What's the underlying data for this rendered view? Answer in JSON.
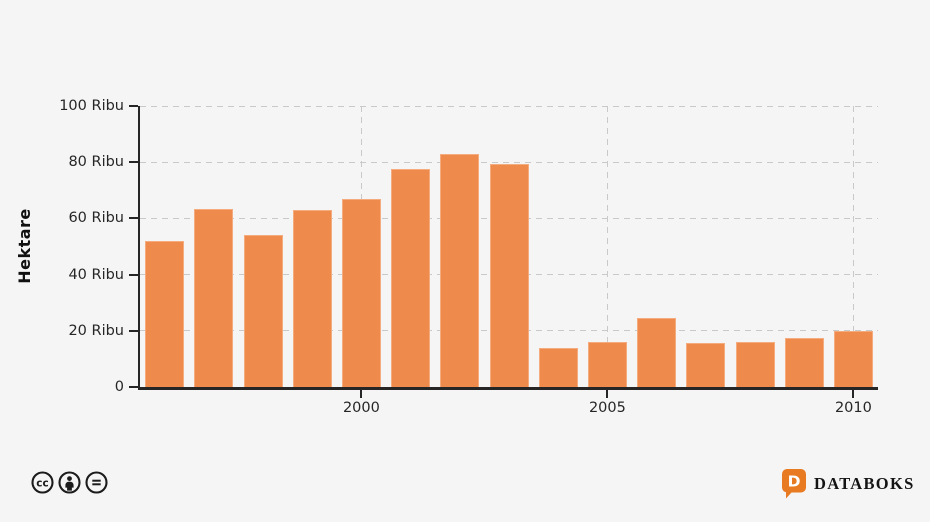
{
  "page": {
    "background": "#f5f5f5"
  },
  "chart_data": {
    "type": "bar",
    "title": "",
    "xlabel": "",
    "ylabel": "Hektare",
    "unit": "Ribu Hektare",
    "categories": [
      1996,
      1997,
      1998,
      1999,
      2000,
      2001,
      2002,
      2003,
      2004,
      2005,
      2006,
      2007,
      2008,
      2009,
      2010
    ],
    "values": [
      52,
      63.5,
      54,
      63,
      67,
      77.5,
      83,
      79.5,
      14,
      16,
      24.5,
      15.5,
      16,
      17.5,
      20
    ],
    "ylim": [
      0,
      100
    ],
    "grid": "dashed",
    "legend": "none",
    "yticks": [
      {
        "value": 100,
        "label": "100 Ribu"
      },
      {
        "value": 80,
        "label": "80 Ribu"
      },
      {
        "value": 60,
        "label": "60 Ribu"
      },
      {
        "value": 40,
        "label": "40 Ribu"
      },
      {
        "value": 20,
        "label": "20 Ribu"
      },
      {
        "value": 0,
        "label": "0"
      }
    ],
    "xticks": [
      {
        "year": 2000,
        "label": "2000"
      },
      {
        "year": 2005,
        "label": "2005"
      },
      {
        "year": 2010,
        "label": "2010"
      }
    ],
    "colors": {
      "bar_fill": "#ef8a4d",
      "bar_border": "#f4ab7d",
      "axis": "#262626",
      "grid": "#c9c9c9",
      "label": "#262626"
    }
  },
  "footer": {
    "license_icons": [
      {
        "name": "cc-icon",
        "glyph_text": "cc"
      },
      {
        "name": "cc-by-icon",
        "glyph": "person"
      },
      {
        "name": "cc-nd-icon",
        "glyph": "equals"
      }
    ],
    "brand": {
      "text": "DATABOKS",
      "icon_color": "#e87a22",
      "text_color": "#141414"
    }
  }
}
